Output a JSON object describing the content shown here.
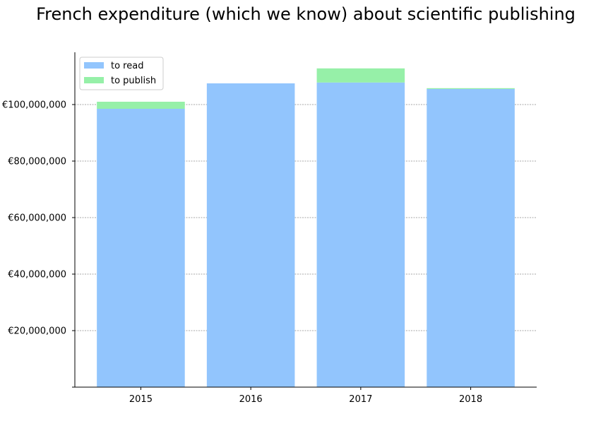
{
  "chart_data": {
    "type": "bar",
    "stacked": true,
    "title": "French expenditure (which we know) about scientific publishing",
    "xlabel": "",
    "ylabel": "",
    "categories": [
      "2015",
      "2016",
      "2017",
      "2018"
    ],
    "series": [
      {
        "name": "to read",
        "color": "#92c5fd",
        "values": [
          98500000,
          107500000,
          107800000,
          105500000
        ]
      },
      {
        "name": "to publish",
        "color": "#96f0a8",
        "values": [
          2500000,
          0,
          5000000,
          300000
        ]
      }
    ],
    "ylim": [
      0,
      118500000
    ],
    "yticks": [
      {
        "value": 20000000,
        "label": "€20,000,000"
      },
      {
        "value": 40000000,
        "label": "€40,000,000"
      },
      {
        "value": 60000000,
        "label": "€60,000,000"
      },
      {
        "value": 80000000,
        "label": "€80,000,000"
      },
      {
        "value": 100000000,
        "label": "€100,000,000"
      }
    ],
    "grid": "horizontal dashed",
    "legend_position": "top-left"
  }
}
